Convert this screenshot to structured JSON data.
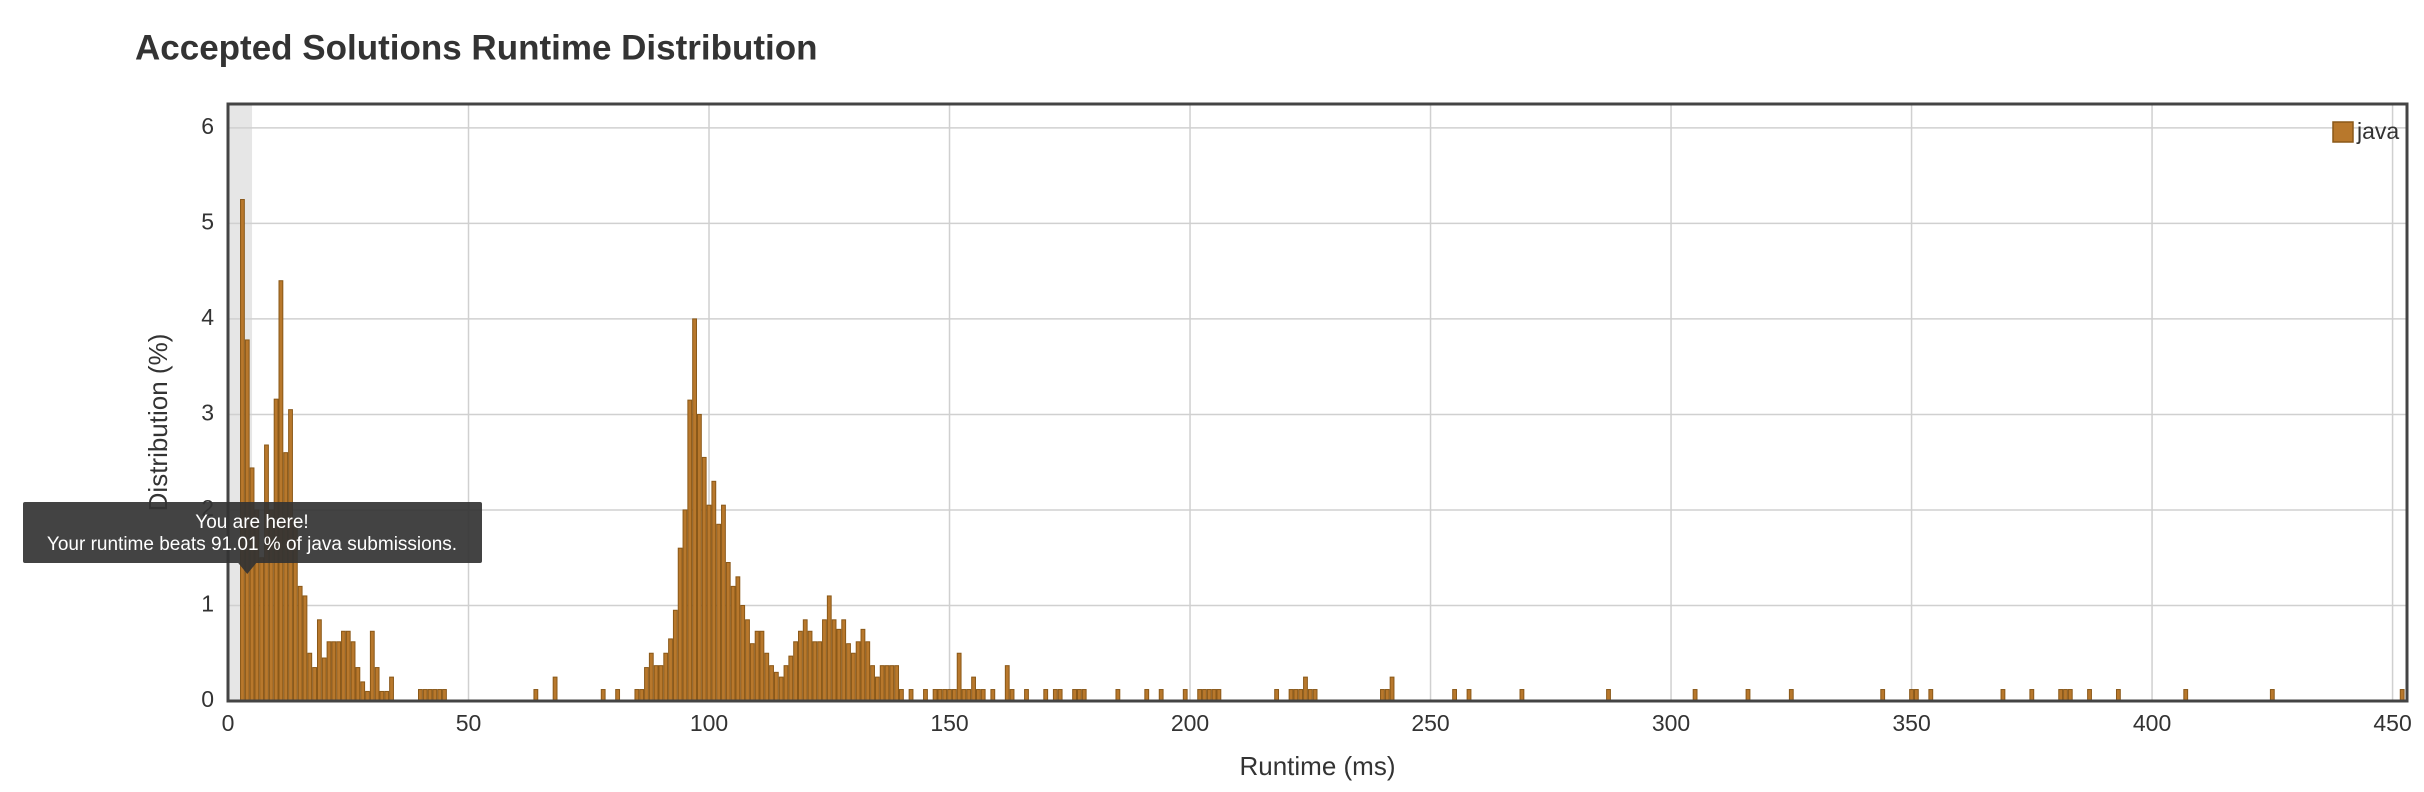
{
  "chart_data": {
    "type": "bar",
    "title": "Accepted Solutions Runtime Distribution",
    "x_label": "Runtime (ms)",
    "y_label": "Distribution (%)",
    "legend": "java",
    "legend_position": "top-right",
    "color": "#b8782c",
    "grid": true,
    "xlim": [
      0,
      453
    ],
    "ylim": [
      0,
      6.25
    ],
    "xticks": [
      0,
      50,
      100,
      150,
      200,
      250,
      300,
      350,
      400,
      450
    ],
    "yticks": [
      0,
      1,
      2,
      3,
      4,
      5,
      6
    ],
    "highlight_x": [
      0,
      5
    ],
    "tooltip": {
      "title": "You are here!",
      "text": "Your runtime beats 91.01 % of java submissions.",
      "x": 4
    },
    "x": [
      3,
      4,
      5,
      6,
      7,
      8,
      9,
      10,
      11,
      12,
      13,
      14,
      15,
      16,
      17,
      18,
      19,
      20,
      21,
      22,
      23,
      24,
      25,
      26,
      27,
      28,
      29,
      30,
      31,
      32,
      33,
      34,
      40,
      41,
      42,
      43,
      44,
      45,
      64,
      68,
      78,
      81,
      85,
      86,
      87,
      88,
      89,
      90,
      91,
      92,
      93,
      94,
      95,
      96,
      97,
      98,
      99,
      100,
      101,
      102,
      103,
      104,
      105,
      106,
      107,
      108,
      109,
      110,
      111,
      112,
      113,
      114,
      115,
      116,
      117,
      118,
      119,
      120,
      121,
      122,
      123,
      124,
      125,
      126,
      127,
      128,
      129,
      130,
      131,
      132,
      133,
      134,
      135,
      136,
      137,
      138,
      139,
      140,
      142,
      145,
      147,
      148,
      149,
      150,
      151,
      152,
      153,
      154,
      155,
      156,
      157,
      159,
      162,
      163,
      166,
      170,
      172,
      173,
      176,
      177,
      178,
      185,
      191,
      194,
      199,
      202,
      203,
      204,
      205,
      206,
      218,
      221,
      222,
      223,
      224,
      225,
      226,
      240,
      241,
      242,
      255,
      258,
      269,
      287,
      305,
      316,
      325,
      344,
      350,
      351,
      354,
      369,
      375,
      381,
      382,
      383,
      387,
      393,
      407,
      425,
      452
    ],
    "values": [
      5.25,
      3.78,
      2.44,
      2.0,
      1.5,
      2.68,
      2.0,
      3.16,
      4.4,
      2.6,
      3.05,
      1.9,
      1.2,
      1.1,
      0.5,
      0.35,
      0.85,
      0.45,
      0.62,
      0.62,
      0.62,
      0.73,
      0.73,
      0.62,
      0.35,
      0.2,
      0.1,
      0.73,
      0.35,
      0.1,
      0.1,
      0.25,
      0.12,
      0.12,
      0.12,
      0.12,
      0.12,
      0.12,
      0.12,
      0.25,
      0.12,
      0.12,
      0.12,
      0.12,
      0.35,
      0.5,
      0.37,
      0.37,
      0.5,
      0.65,
      0.95,
      1.6,
      2.0,
      3.15,
      4.0,
      3.0,
      2.55,
      2.05,
      2.3,
      1.85,
      2.05,
      1.45,
      1.2,
      1.3,
      1.0,
      0.85,
      0.6,
      0.73,
      0.73,
      0.5,
      0.37,
      0.3,
      0.25,
      0.37,
      0.47,
      0.62,
      0.73,
      0.85,
      0.73,
      0.62,
      0.62,
      0.85,
      1.1,
      0.85,
      0.75,
      0.85,
      0.6,
      0.5,
      0.62,
      0.75,
      0.62,
      0.37,
      0.25,
      0.37,
      0.37,
      0.37,
      0.37,
      0.12,
      0.12,
      0.12,
      0.12,
      0.12,
      0.12,
      0.12,
      0.12,
      0.5,
      0.12,
      0.12,
      0.25,
      0.12,
      0.12,
      0.12,
      0.37,
      0.12,
      0.12,
      0.12,
      0.12,
      0.12,
      0.12,
      0.12,
      0.12,
      0.12,
      0.12,
      0.12,
      0.12,
      0.12,
      0.12,
      0.12,
      0.12,
      0.12,
      0.12,
      0.12,
      0.12,
      0.12,
      0.25,
      0.12,
      0.12,
      0.12,
      0.12,
      0.25,
      0.12,
      0.12,
      0.12,
      0.12,
      0.12,
      0.12,
      0.12,
      0.12,
      0.12,
      0.12,
      0.12,
      0.12,
      0.12,
      0.12,
      0.12,
      0.12,
      0.12,
      0.12,
      0.12,
      0.12,
      0.12
    ]
  }
}
